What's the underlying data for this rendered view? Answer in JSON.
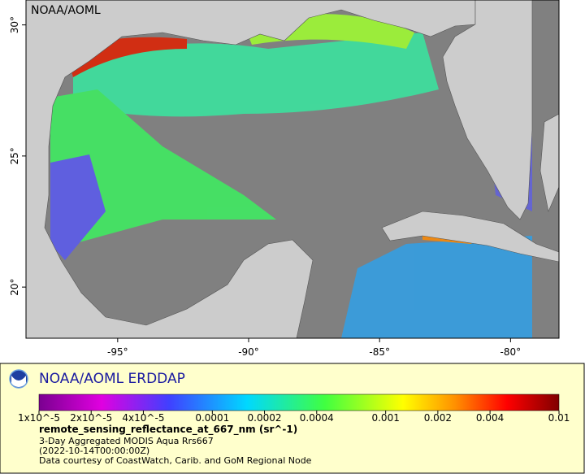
{
  "map": {
    "watermark": "NOAA/AOML",
    "xlim": [
      -98.5,
      -78.15
    ],
    "ylim": [
      18.05,
      30.95
    ],
    "xticks": [
      {
        "value": -95,
        "label": "-95°"
      },
      {
        "value": -90,
        "label": "-90°"
      },
      {
        "value": -85,
        "label": "-85°"
      },
      {
        "value": -80,
        "label": "-80°"
      }
    ],
    "yticks": [
      {
        "value": 30,
        "label": "30°"
      },
      {
        "value": 25,
        "label": "25°"
      },
      {
        "value": 20,
        "label": "20°"
      }
    ]
  },
  "legend": {
    "title": "NOAA/AOML ERDDAP",
    "colorbar": {
      "scale": "log",
      "range": [
        1e-05,
        0.01
      ],
      "ticks": [
        {
          "value": 1e-05,
          "label": "1x10^-5"
        },
        {
          "value": 2e-05,
          "label": "2x10^-5"
        },
        {
          "value": 4e-05,
          "label": "4x10^-5"
        },
        0.0001,
        0.0002,
        0.0004,
        0.001,
        0.002,
        0.004,
        0.01
      ]
    },
    "variable": "remote_sensing_reflectance_at_667_nm (sr^-1)",
    "lines": [
      "3-Day Aggregated MODIS Aqua Rrs667",
      "(2022-10-14T00:00:00Z)",
      "Data courtesy of CoastWatch, Carib. and GoM Regional Node"
    ]
  }
}
